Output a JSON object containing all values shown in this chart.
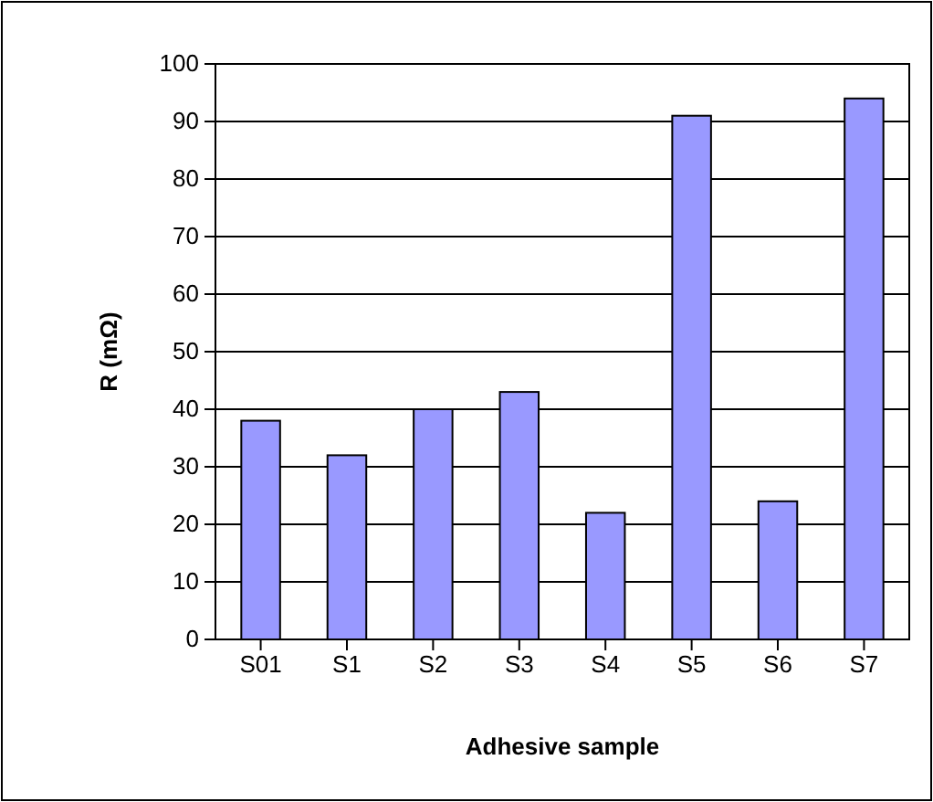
{
  "chart_data": {
    "type": "bar",
    "xlabel": "Adhesive sample",
    "ylabel": "R (mΩ)",
    "categories": [
      "S01",
      "S1",
      "S2",
      "S3",
      "S4",
      "S5",
      "S6",
      "S7"
    ],
    "values": [
      38,
      32,
      40,
      43,
      22,
      91,
      24,
      94
    ],
    "color": "#9999ff",
    "ylim": [
      0,
      100
    ],
    "yticks": [
      0,
      10,
      20,
      30,
      40,
      50,
      60,
      70,
      80,
      90,
      100
    ],
    "grid": "y"
  }
}
